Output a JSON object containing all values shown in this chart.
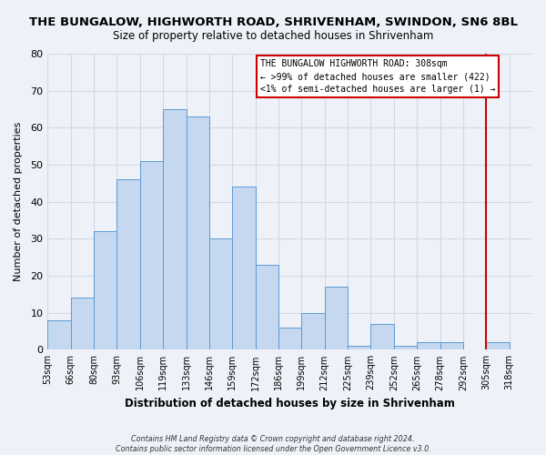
{
  "title": "THE BUNGALOW, HIGHWORTH ROAD, SHRIVENHAM, SWINDON, SN6 8BL",
  "subtitle": "Size of property relative to detached houses in Shrivenham",
  "xlabel": "Distribution of detached houses by size in Shrivenham",
  "ylabel": "Number of detached properties",
  "bin_labels": [
    "53sqm",
    "66sqm",
    "80sqm",
    "93sqm",
    "106sqm",
    "119sqm",
    "133sqm",
    "146sqm",
    "159sqm",
    "172sqm",
    "186sqm",
    "199sqm",
    "212sqm",
    "225sqm",
    "239sqm",
    "252sqm",
    "265sqm",
    "278sqm",
    "292sqm",
    "305sqm",
    "318sqm"
  ],
  "bar_heights": [
    8,
    14,
    32,
    46,
    51,
    65,
    63,
    30,
    44,
    23,
    6,
    10,
    17,
    1,
    7,
    1,
    2,
    2,
    0,
    2,
    0
  ],
  "bar_color": "#c5d8f0",
  "bar_edge_color": "#5b9bd5",
  "ylim": [
    0,
    80
  ],
  "yticks": [
    0,
    10,
    20,
    30,
    40,
    50,
    60,
    70,
    80
  ],
  "property_line_color": "#cc0000",
  "annotation_line1": "THE BUNGALOW HIGHWORTH ROAD: 308sqm",
  "annotation_line2": "← >99% of detached houses are smaller (422)",
  "annotation_line3": "<1% of semi-detached houses are larger (1) →",
  "annotation_box_edge_color": "#cc0000",
  "footer_line1": "Contains HM Land Registry data © Crown copyright and database right 2024.",
  "footer_line2": "Contains public sector information licensed under the Open Government Licence v3.0.",
  "background_color": "#eef2f8",
  "grid_color": "#d0d8e8"
}
